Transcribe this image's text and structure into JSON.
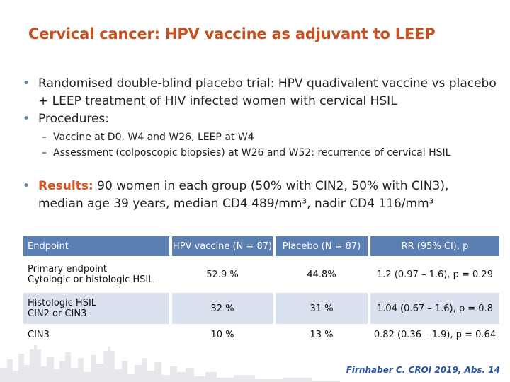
{
  "slide": {
    "title": "Cervical cancer: HPV vaccine as adjuvant to LEEP",
    "bullets": [
      "Randomised double-blind placebo trial: HPV quadivalent vaccine vs placebo + LEEP treatment of HIV infected women with cervical HSIL",
      "Procedures:"
    ],
    "sub_bullets": [
      "Vaccine at D0, W4 and W26, LEEP at W4",
      "Assessment (colposcopic biopsies) at W26 and W52: recurrence of cervical HSIL"
    ],
    "results": {
      "label": "Results:",
      "text": " 90 women in each group (50% with CIN2, 50% with CIN3), median age 39 years, median CD4 489/mm³, nadir CD4 116/mm³"
    },
    "bullet_color": "#5b7fb5",
    "accent_color": "#c8501e"
  },
  "table": {
    "headers": [
      "Endpoint",
      "HPV vaccine (N = 87)",
      "Placebo (N = 87)",
      "RR (95% CI), p"
    ],
    "rows": [
      {
        "endpoint_line1": "Primary endpoint",
        "endpoint_line2": "Cytologic or histologic HSIL",
        "vaccine": "52.9 %",
        "placebo": "44.8%",
        "rr": "1.2 (0.97 – 1.6), p = 0.29"
      },
      {
        "endpoint_line1": "Histologic HSIL",
        "endpoint_line2": "CIN2 or CIN3",
        "vaccine": "32 %",
        "placebo": "31 %",
        "rr": "1.04 (0.67 – 1.6), p = 0.8"
      },
      {
        "endpoint_line1": "CIN3",
        "endpoint_line2": "",
        "vaccine": "10 %",
        "placebo": "13 %",
        "rr": "0.82 (0.36 – 1.9), p = 0.64"
      }
    ],
    "header_color": "#5b7fb3",
    "shade_color": "#d9e1ef"
  },
  "footer": {
    "citation": "Firnhaber C. CROI 2019, Abs. 14",
    "color": "#2a52a3"
  }
}
